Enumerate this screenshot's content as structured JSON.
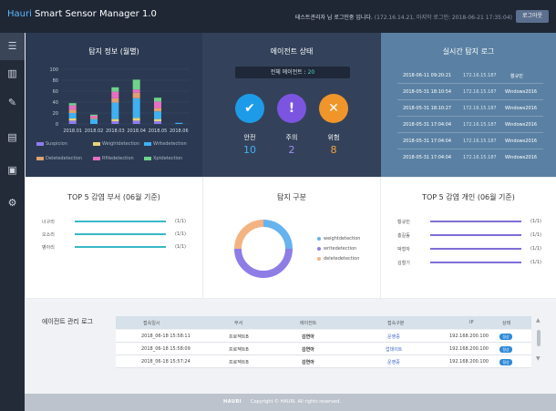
{
  "header": {
    "brand_prefix": "Hauri",
    "brand_rest": " Smart Sensor Manager 1.0",
    "user_text": "테스트관리자 님 로그인중 입니다.",
    "last_login": "(172.16.14.21, 마지막 로그인: 2018-06-21 17:35:04)",
    "logout_label": "로그아웃"
  },
  "sidebar": {
    "items": [
      {
        "icon": "menu-icon",
        "glyph": "☰"
      },
      {
        "icon": "bar-chart-icon",
        "glyph": "▥"
      },
      {
        "icon": "edit-icon",
        "glyph": "✎"
      },
      {
        "icon": "report-icon",
        "glyph": "▤"
      },
      {
        "icon": "document-icon",
        "glyph": "▣"
      },
      {
        "icon": "gear-icon",
        "glyph": "⚙"
      }
    ]
  },
  "detection_panel": {
    "title": "탐지 정보 (월별)",
    "legend": [
      "Suspicion",
      "Weightdetection",
      "Writedetection",
      "Deletedetection",
      "Rfiledetection",
      "Xptdetection"
    ]
  },
  "chart_data": {
    "type": "bar",
    "stacked": true,
    "categories": [
      "2018.01",
      "2018.02",
      "2018.03",
      "2018.04",
      "2018.05",
      "2018.06"
    ],
    "ylim": [
      0,
      100
    ],
    "yticks": [
      0,
      20,
      40,
      60,
      80,
      100
    ],
    "series": [
      {
        "name": "Suspicion",
        "color": "#8e7cf0",
        "values": [
          6,
          0,
          5,
          6,
          5,
          0
        ]
      },
      {
        "name": "Weightdetection",
        "color": "#e8d27a",
        "values": [
          4,
          0,
          4,
          5,
          4,
          0
        ]
      },
      {
        "name": "Writedetection",
        "color": "#3fb0f0",
        "values": [
          10,
          9,
          30,
          36,
          14,
          2
        ]
      },
      {
        "name": "Deletedetection",
        "color": "#e0a070",
        "values": [
          6,
          2,
          8,
          10,
          6,
          0
        ]
      },
      {
        "name": "Rfiledetection",
        "color": "#e76fc2",
        "values": [
          8,
          4,
          12,
          6,
          12,
          0
        ]
      },
      {
        "name": "Xptdetection",
        "color": "#6fd38a",
        "values": [
          4,
          2,
          8,
          18,
          7,
          0
        ]
      }
    ]
  },
  "agent_status": {
    "title": "에이전트 상태",
    "total_label": "전체 에이전트 : ",
    "total_value": "20",
    "items": [
      {
        "label": "안전",
        "value": "10",
        "icon": "check-icon",
        "glyph": "✔",
        "color": "#1e9be8",
        "value_color": "#3fb4f5"
      },
      {
        "label": "주의",
        "value": "2",
        "icon": "exclamation-icon",
        "glyph": "!",
        "color": "#7b55df",
        "value_color": "#a08ef5"
      },
      {
        "label": "위험",
        "value": "8",
        "icon": "close-icon",
        "glyph": "✕",
        "color": "#f0952a",
        "value_color": "#f7a23b"
      }
    ]
  },
  "realtime_log": {
    "title": "실시간 탐지 로그",
    "rows": [
      {
        "time": "2018-06-11 09:20:21",
        "ip": "172.16.15.187",
        "host": "황규민"
      },
      {
        "time": "2018-05-31 18:10:54",
        "ip": "172.16.15.187",
        "host": "Windows2016"
      },
      {
        "time": "2018-05-31 18:10:27",
        "ip": "172.16.15.187",
        "host": "Windows2016"
      },
      {
        "time": "2018-05-31 17:04:04",
        "ip": "172.16.15.187",
        "host": "Windows2016"
      },
      {
        "time": "2018-05-31 17:04:04",
        "ip": "172.16.15.187",
        "host": "Windows2016"
      },
      {
        "time": "2018-05-31 17:04:04",
        "ip": "172.16.15.187",
        "host": "Windows2016"
      }
    ]
  },
  "top5_dept": {
    "title": "TOP 5 감염 부서 (06월 기준)",
    "rows": [
      {
        "name": "너구리",
        "count": "(1/1)",
        "value": 1
      },
      {
        "name": "오소리",
        "count": "(1/1)",
        "value": 1
      },
      {
        "name": "병아리",
        "count": "(1/1)",
        "value": 1
      }
    ]
  },
  "detection_type": {
    "title": "탐지 구분",
    "legend": [
      "weightdetection",
      "writedetection",
      "deletedetection"
    ],
    "pie": [
      {
        "name": "weightdetection",
        "value": 25,
        "color": "#66b3ee"
      },
      {
        "name": "writedetection",
        "value": 50,
        "color": "#8f7de6"
      },
      {
        "name": "deletedetection",
        "value": 25,
        "color": "#f3b482"
      }
    ]
  },
  "top5_person": {
    "title": "TOP 5 감염 개인 (06월 기준)",
    "rows": [
      {
        "name": "황규민",
        "count": "(1/1)",
        "value": 1
      },
      {
        "name": "홍길동",
        "count": "(1/1)",
        "value": 1
      },
      {
        "name": "박형자",
        "count": "(1/1)",
        "value": 1
      },
      {
        "name": "김철기",
        "count": "(1/1)",
        "value": 1
      }
    ]
  },
  "agent_log": {
    "title": "에이전트 관리 로그",
    "columns": [
      "접속일시",
      "부서",
      "에이전트",
      "접속구분",
      "IP",
      "상태"
    ],
    "rows": [
      {
        "time": "2018_06-18  15:58:11",
        "dept": "프로젝트B",
        "agent": "김연아",
        "kind": "운영중",
        "ip": "192.168.200.100",
        "status": "정상"
      },
      {
        "time": "2018_06-18  15:58:09",
        "dept": "프로젝트B",
        "agent": "김연아",
        "kind": "업데이트",
        "ip": "192.168.200.100",
        "status": "정상"
      },
      {
        "time": "2018_06-18  15:57:24",
        "dept": "프로젝트B",
        "agent": "김연아",
        "kind": "운영중",
        "ip": "192.168.200.100",
        "status": "정상"
      }
    ]
  },
  "footer": {
    "logo": "HAURI",
    "copyright": "Copyright © HAURI. All rights reserved."
  }
}
